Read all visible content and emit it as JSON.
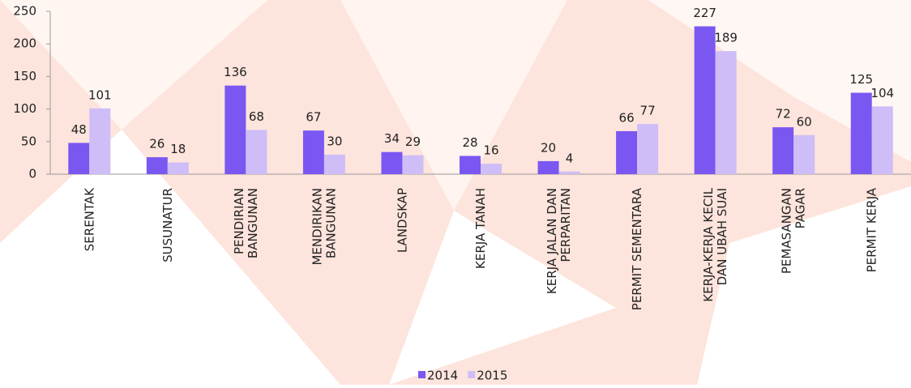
{
  "chart_data": {
    "type": "bar",
    "categories": [
      "SERENTAK",
      "SUSUNATUR",
      "PENDIRIAN\nBANGUNAN",
      "MENDIRIKAN\nBANGUNAN",
      "LANDSKAP",
      "KERJA TANAH",
      "KERJA JALAN DAN\nPERPARITAN",
      "PERMIT SEMENTARA",
      "KERJA-KERJA KECIL\nDAN UBAH SUAI",
      "PEMASANGAN\nPAGAR",
      "PERMIT KERJA"
    ],
    "series": [
      {
        "name": "2014",
        "color": "#7b57f2",
        "values": [
          48,
          26,
          136,
          67,
          34,
          28,
          20,
          66,
          227,
          72,
          125
        ]
      },
      {
        "name": "2015",
        "color": "#cfbdf8",
        "values": [
          101,
          18,
          68,
          30,
          29,
          16,
          4,
          77,
          189,
          60,
          104
        ]
      }
    ],
    "ylim": [
      0,
      250
    ],
    "yticks": [
      0,
      50,
      100,
      150,
      200,
      250
    ],
    "grid": false,
    "legend": "bottom"
  }
}
